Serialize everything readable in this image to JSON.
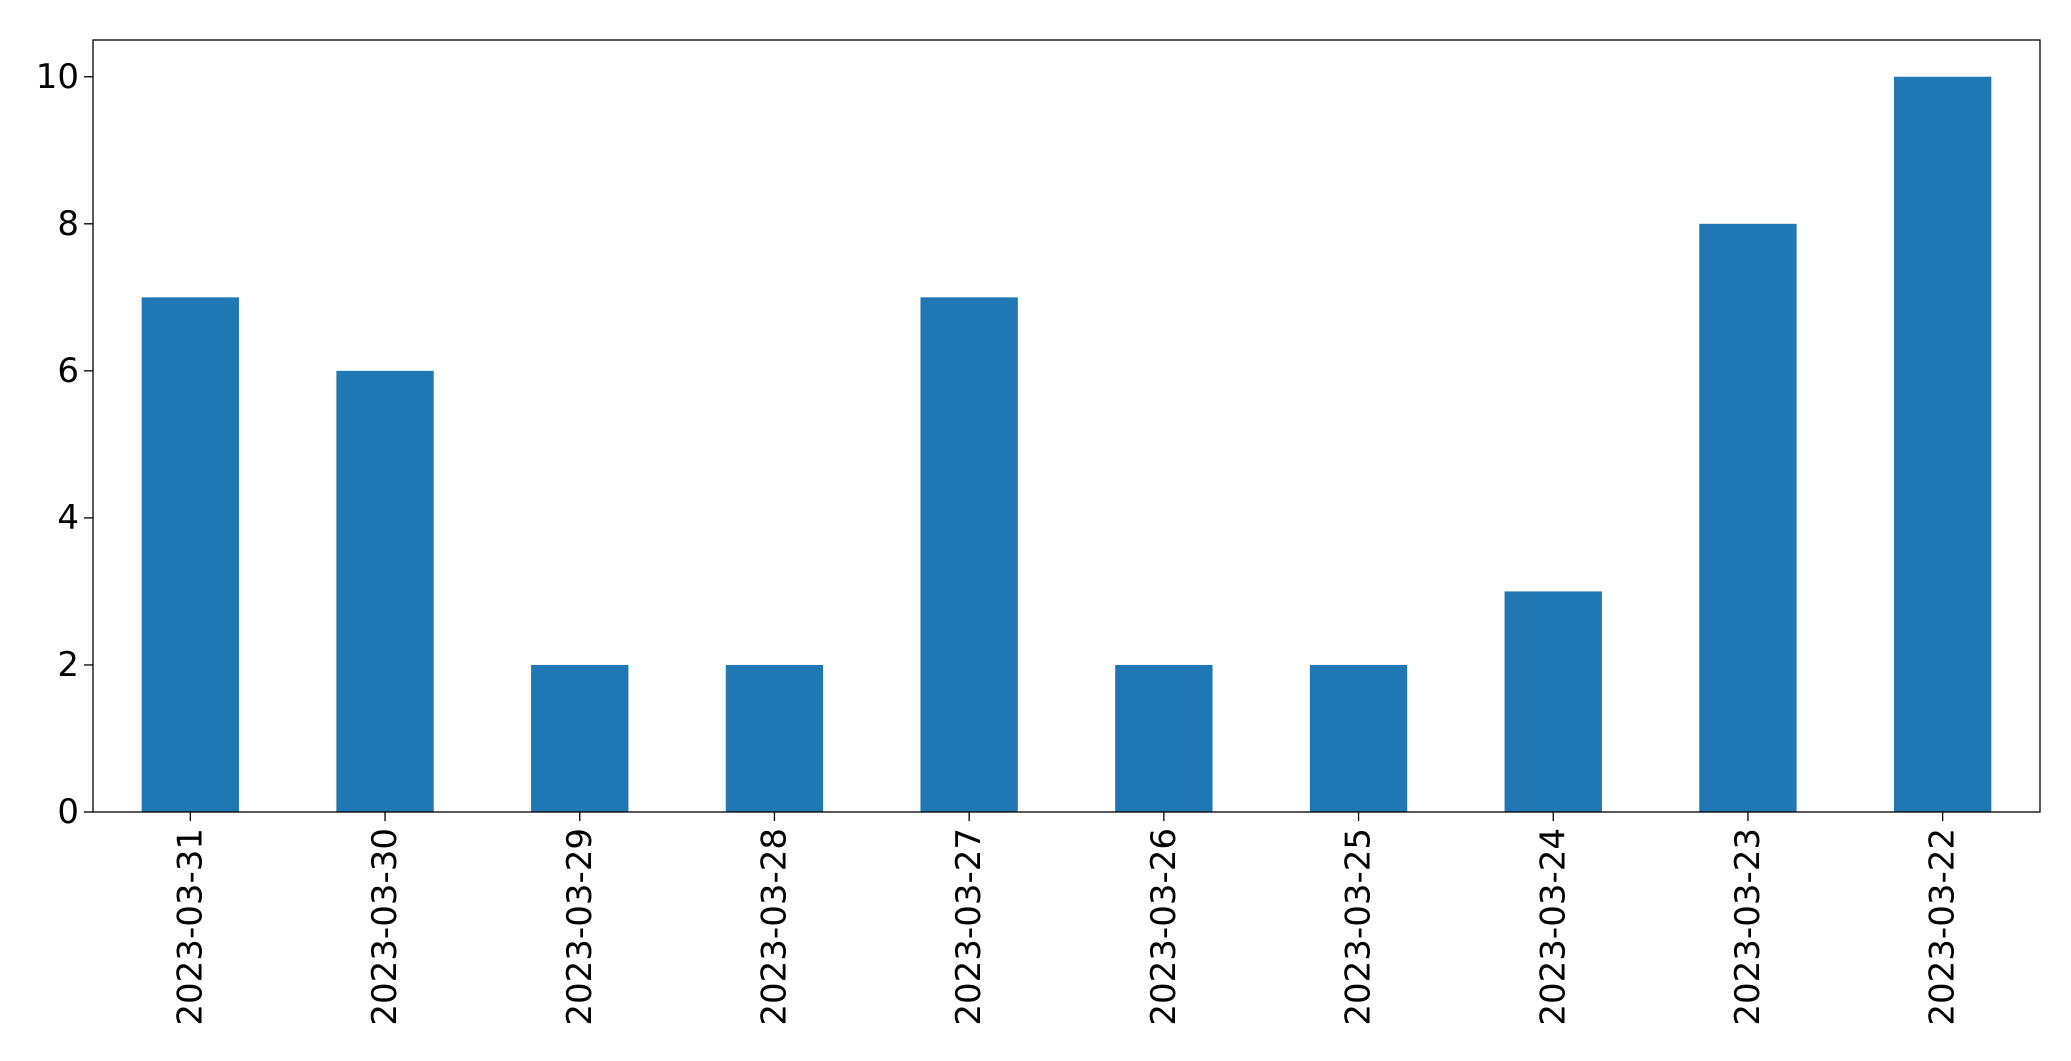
{
  "chart_data": {
    "type": "bar",
    "categories": [
      "2023-03-31",
      "2023-03-30",
      "2023-03-29",
      "2023-03-28",
      "2023-03-27",
      "2023-03-26",
      "2023-03-25",
      "2023-03-24",
      "2023-03-23",
      "2023-03-22"
    ],
    "values": [
      7,
      6,
      2,
      2,
      7,
      2,
      2,
      3,
      8,
      10
    ],
    "color": "#1f77b4",
    "ylim": [
      0,
      10.5
    ],
    "yticks": [
      0,
      2,
      4,
      6,
      8,
      10
    ],
    "grid": false
  }
}
